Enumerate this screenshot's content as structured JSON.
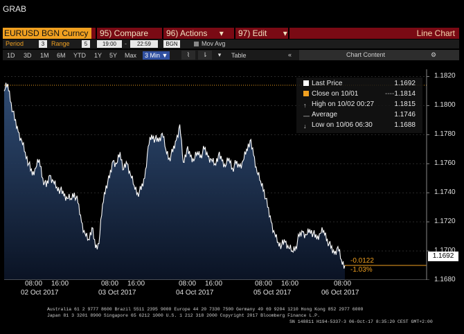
{
  "app": {
    "title": "GRAB"
  },
  "titlebar": {
    "security": "EURUSD BGN Curncy",
    "compare": "95) Compare",
    "actions": "96) Actions",
    "actions_arrow": "▾",
    "edit": "97) Edit",
    "edit_arrow": "▾",
    "chart_label": "Line Chart"
  },
  "settings": {
    "period_label": "Period",
    "period_value": "3",
    "range_label": "Range",
    "range_value": "5",
    "time_from": "19:00",
    "time_to": "22:59",
    "source": "BGN",
    "mov_avg_label": "Mov Avg"
  },
  "toolbar": {
    "tabs": [
      "1D",
      "3D",
      "1M",
      "6M",
      "YTD",
      "1Y",
      "5Y",
      "Max"
    ],
    "interval": "3 Min ▼",
    "table_label": "Table",
    "collapse_icon": "«",
    "chart_content_label": "Chart Content",
    "settings_icon": "⚙",
    "line_icon": "⌇",
    "bar_icon": "⇂"
  },
  "legend": {
    "last_price_label": "Last Price",
    "last_price_value": "1.1692",
    "close_label": "Close on 10/01",
    "close_value": "1.1814",
    "high_label": "High on 10/02 00:27",
    "high_value": "1.1815",
    "average_label": "Average",
    "average_value": "1.1746",
    "low_label": "Low on 10/06 06:30",
    "low_value": "1.1688"
  },
  "price_box": "1.1692",
  "change": {
    "abs": "-0.0122",
    "pct": "-1.03%"
  },
  "footer": {
    "line1": "Australia 61 2 9777 8600 Brazil 5511 2395 9000 Europe 44 20 7330 7500 Germany 49 69 9204 1210 Hong Kong 852 2977 6000",
    "line2": "Japan 81 3 3201 8900        Singapore 65 6212 1000        U.S. 1 212 318 2000        Copyright 2017 Bloomberg Finance L.P.",
    "line3": "SN 148811 H194-5337-3 06-Oct-17  8:35:20 CEST GMT+2:00"
  },
  "colors": {
    "title_bar": "#7a0a14",
    "security_tab": "#f0a020",
    "accent": "#f0a020",
    "line": "#ffffff",
    "area_top": "#32507a",
    "area_bottom": "#0b1426"
  },
  "chart_data": {
    "type": "area",
    "ylim": [
      1.168,
      1.1825
    ],
    "y_ticks": [
      "1.1820",
      "1.1800",
      "1.1780",
      "1.1760",
      "1.1740",
      "1.1720",
      "1.1700",
      "1.1680"
    ],
    "x_time_labels": [
      "08:00",
      "16:00",
      "08:00",
      "16:00",
      "08:00",
      "16:00",
      "08:00",
      "16:00",
      "08:00"
    ],
    "x_date_labels": [
      "02 Oct 2017",
      "03 Oct 2017",
      "04 Oct 2017",
      "05 Oct 2017",
      "06 Oct 2017"
    ],
    "reference_line": 1.1814,
    "series": [
      {
        "x": [
          0,
          1,
          2,
          3,
          4,
          5,
          6,
          7,
          8,
          9,
          10,
          11,
          12,
          13,
          14,
          15,
          16,
          17,
          18,
          19,
          20,
          21,
          22,
          23,
          24,
          25,
          26,
          27,
          28,
          29,
          30,
          31,
          32,
          33,
          34,
          35,
          36,
          37,
          38,
          39,
          40,
          41,
          42,
          43,
          44,
          45,
          46,
          47,
          48,
          49,
          50,
          51,
          52,
          53,
          54,
          55,
          56,
          57,
          58,
          59,
          60,
          61,
          62,
          63,
          64,
          65,
          66,
          67,
          68,
          69,
          70,
          71,
          72,
          73,
          74,
          75,
          76,
          77,
          78,
          79,
          80,
          81,
          82,
          83,
          84,
          85,
          86,
          87,
          88,
          89,
          90,
          91,
          92,
          93,
          94,
          95,
          96,
          97
        ],
        "values": [
          1.181,
          1.1815,
          1.1802,
          1.179,
          1.1782,
          1.1776,
          1.1768,
          1.176,
          1.1752,
          1.1757,
          1.1763,
          1.175,
          1.1744,
          1.1752,
          1.1748,
          1.1744,
          1.1742,
          1.1738,
          1.1736,
          1.1736,
          1.174,
          1.1733,
          1.172,
          1.1712,
          1.1708,
          1.1716,
          1.1702,
          1.1705,
          1.1732,
          1.1745,
          1.175,
          1.1762,
          1.176,
          1.1768,
          1.1756,
          1.176,
          1.1752,
          1.1745,
          1.174,
          1.1742,
          1.175,
          1.1772,
          1.178,
          1.1777,
          1.1775,
          1.1781,
          1.177,
          1.1764,
          1.1768,
          1.1776,
          1.1787,
          1.1761,
          1.177,
          1.1765,
          1.1762,
          1.1768,
          1.1766,
          1.177,
          1.1765,
          1.1763,
          1.176,
          1.1766,
          1.1762,
          1.1758,
          1.1764,
          1.1757,
          1.176,
          1.1758,
          1.1762,
          1.177,
          1.1776,
          1.1766,
          1.1754,
          1.1748,
          1.1742,
          1.173,
          1.172,
          1.1712,
          1.1706,
          1.1704,
          1.1706,
          1.1702,
          1.17,
          1.1703,
          1.171,
          1.1713,
          1.1711,
          1.1715,
          1.1712,
          1.1708,
          1.1712,
          1.1714,
          1.1708,
          1.1702,
          1.1698,
          1.1703,
          1.1694,
          1.169
        ]
      }
    ]
  }
}
